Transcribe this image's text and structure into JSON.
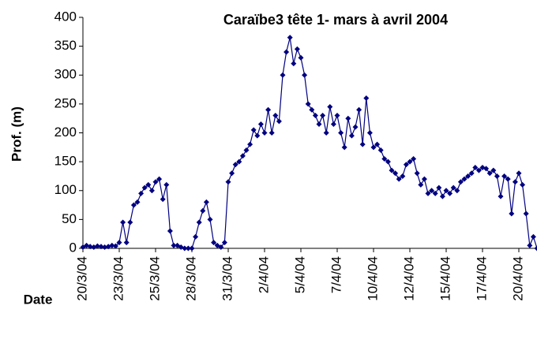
{
  "chart_data": {
    "type": "line",
    "title": "Caraïbe3 tête 1- mars à avril 2004",
    "x_label": "Date",
    "y_label": "Prof. (m)",
    "categories": [
      "20/3/04",
      null,
      null,
      null,
      null,
      null,
      null,
      null,
      null,
      null,
      "23/3/04",
      null,
      null,
      null,
      null,
      null,
      null,
      null,
      null,
      null,
      "25/3/04",
      null,
      null,
      null,
      null,
      null,
      null,
      null,
      null,
      null,
      "28/3/04",
      null,
      null,
      null,
      null,
      null,
      null,
      null,
      null,
      null,
      "31/3/04",
      null,
      null,
      null,
      null,
      null,
      null,
      null,
      null,
      null,
      "2/4/04",
      null,
      null,
      null,
      null,
      null,
      null,
      null,
      null,
      null,
      "5/4/04",
      null,
      null,
      null,
      null,
      null,
      null,
      null,
      null,
      null,
      "7/4/04",
      null,
      null,
      null,
      null,
      null,
      null,
      null,
      null,
      null,
      "10/4/04",
      null,
      null,
      null,
      null,
      null,
      null,
      null,
      null,
      null,
      "12/4/04",
      null,
      null,
      null,
      null,
      null,
      null,
      null,
      null,
      null,
      "15/4/04",
      null,
      null,
      null,
      null,
      null,
      null,
      null,
      null,
      null,
      "17/4/04",
      null,
      null,
      null,
      null,
      null,
      null,
      null,
      null,
      null,
      "20/4/04",
      null,
      null,
      null,
      null,
      null
    ],
    "series": [
      {
        "name": "Prof. (m)",
        "color": "#000080",
        "values": [
          2,
          5,
          3,
          2,
          4,
          3,
          2,
          3,
          5,
          4,
          10,
          45,
          10,
          45,
          75,
          80,
          95,
          105,
          110,
          100,
          115,
          120,
          85,
          110,
          30,
          5,
          5,
          2,
          0,
          0,
          0,
          20,
          45,
          65,
          80,
          50,
          10,
          5,
          2,
          10,
          115,
          130,
          145,
          150,
          160,
          170,
          180,
          205,
          195,
          215,
          200,
          240,
          200,
          230,
          220,
          300,
          340,
          365,
          320,
          345,
          330,
          300,
          250,
          240,
          230,
          215,
          230,
          200,
          245,
          215,
          230,
          200,
          175,
          225,
          195,
          210,
          240,
          180,
          260,
          200,
          175,
          180,
          170,
          155,
          150,
          135,
          130,
          120,
          125,
          145,
          150,
          155,
          130,
          110,
          120,
          95,
          100,
          95,
          105,
          90,
          100,
          95,
          105,
          100,
          115,
          120,
          125,
          130,
          140,
          135,
          140,
          138,
          130,
          135,
          125,
          90,
          125,
          120,
          60,
          115,
          130,
          110,
          60,
          5,
          20,
          0
        ]
      }
    ],
    "ylim": [
      0,
      400
    ],
    "yticks": [
      0,
      50,
      100,
      150,
      200,
      250,
      300,
      350,
      400
    ]
  }
}
